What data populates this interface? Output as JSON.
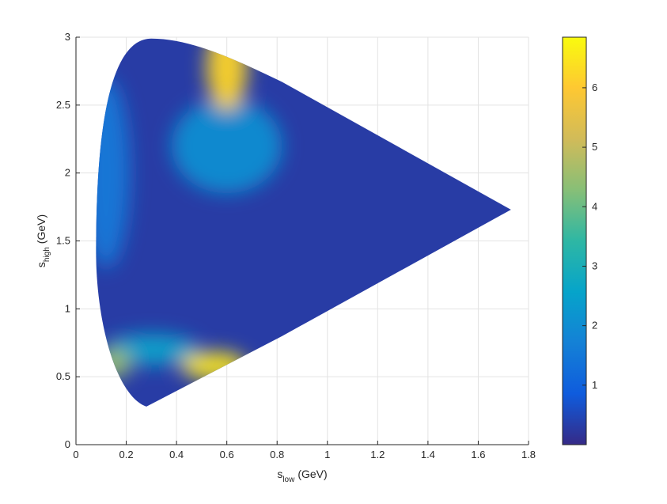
{
  "chart_data": {
    "type": "heatmap",
    "title": "",
    "xlabel": {
      "main": "s",
      "sub": "low",
      "unit": "(GeV)"
    },
    "ylabel": {
      "main": "s",
      "sub": "high",
      "unit": "(GeV)"
    },
    "xlim": [
      0,
      1.8
    ],
    "ylim": [
      0,
      3
    ],
    "x_ticks": [
      "0",
      "0.2",
      "0.4",
      "0.6",
      "0.8",
      "1",
      "1.2",
      "1.4",
      "1.6",
      "1.8"
    ],
    "y_ticks": [
      "0",
      "0.5",
      "1",
      "1.5",
      "2",
      "2.5",
      "3"
    ],
    "grid": true,
    "colormap": "parula",
    "colorbar": {
      "range": [
        0,
        6.85
      ],
      "ticks": [
        "1",
        "2",
        "3",
        "4",
        "5",
        "6"
      ],
      "stops": [
        "#352a87",
        "#0f5cdd",
        "#1481d6",
        "#06a4ca",
        "#2eb7a4",
        "#87bf77",
        "#d1bb59",
        "#fec832",
        "#f9fb0e"
      ]
    },
    "region": {
      "boundary": "Dalitz-plot boundary",
      "vertices": [
        {
          "name": "left-edge",
          "x": 0.08,
          "y": 1.42
        },
        {
          "name": "top",
          "x": 0.3,
          "y": 2.99
        },
        {
          "name": "bottom",
          "x": 0.28,
          "y": 0.28
        },
        {
          "name": "right-tip",
          "x": 1.73,
          "y": 1.73
        }
      ],
      "background_value": 0.3
    },
    "hotspots": [
      {
        "name": "top-resonance",
        "x": 0.6,
        "y": 2.78,
        "value": 6.2
      },
      {
        "name": "upper-band",
        "x": 0.6,
        "y": 2.2,
        "value": 2.0
      },
      {
        "name": "bottom-right-resonance",
        "x": 0.55,
        "y": 0.58,
        "value": 6.5
      },
      {
        "name": "bottom-left-resonance",
        "x": 0.15,
        "y": 0.6,
        "value": 4.5
      },
      {
        "name": "lower-band",
        "x": 0.3,
        "y": 0.7,
        "value": 2.5
      },
      {
        "name": "left-edge-band",
        "x": 0.12,
        "y": 2.0,
        "value": 1.5
      }
    ]
  }
}
